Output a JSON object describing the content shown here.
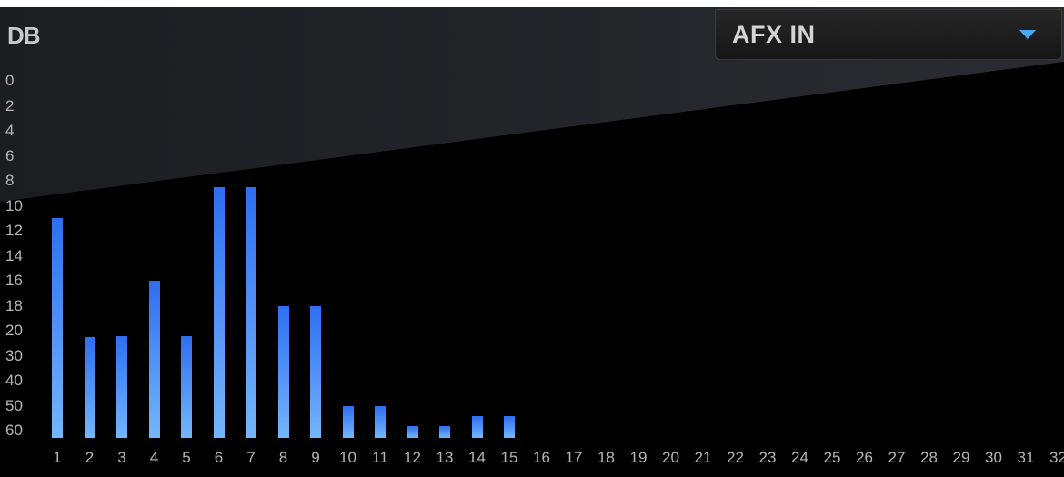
{
  "meter": {
    "unit_label": "DB",
    "y_ticks": [
      "0",
      "2",
      "4",
      "6",
      "8",
      "10",
      "12",
      "14",
      "16",
      "18",
      "20",
      "30",
      "40",
      "50",
      "60"
    ]
  },
  "source_selector": {
    "selected": "AFX IN",
    "arrow_icon": "chevron-down-icon"
  },
  "chart_data": {
    "type": "bar",
    "categories": [
      "1",
      "2",
      "3",
      "4",
      "5",
      "6",
      "7",
      "8",
      "9",
      "10",
      "11",
      "12",
      "13",
      "14",
      "15",
      "16",
      "17",
      "18",
      "19",
      "20",
      "21",
      "22",
      "23",
      "24",
      "25",
      "26",
      "27",
      "28",
      "29",
      "30",
      "31",
      "32"
    ],
    "values": [
      11,
      22.5,
      22,
      16,
      22,
      8.5,
      8.5,
      18,
      18,
      50,
      50,
      58,
      58,
      54,
      54,
      null,
      null,
      null,
      null,
      null,
      null,
      null,
      null,
      null,
      null,
      null,
      null,
      null,
      null,
      null,
      null,
      null
    ],
    "ylabel": "DB",
    "ylim": [
      0,
      60
    ],
    "y_scale": "piecewise: 2 dB steps from 0 to 20, 10 dB steps from 20 to 60, 0 at top",
    "colors": {
      "bar_top": "#2e6ef2",
      "bar_bottom": "#72b6fb",
      "background": "#000000"
    }
  }
}
